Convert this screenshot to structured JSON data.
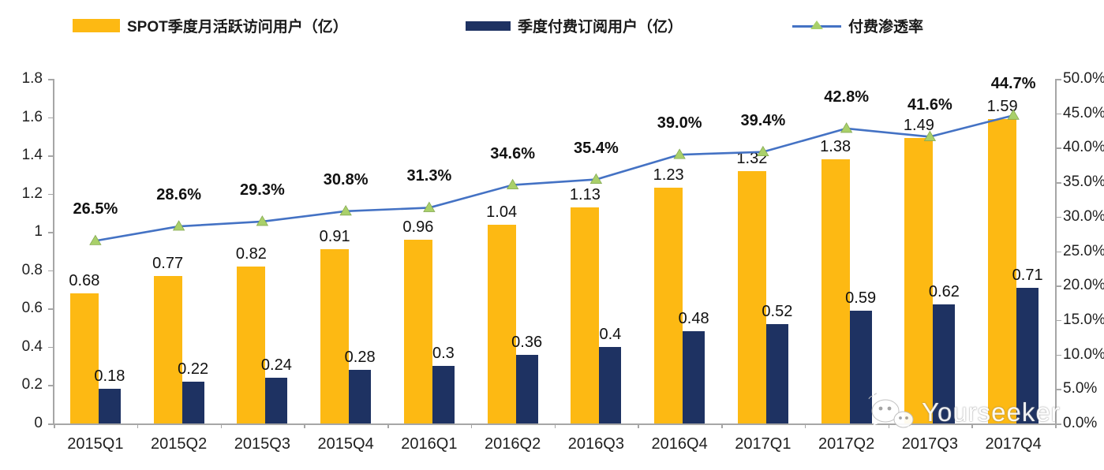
{
  "legend": {
    "items": [
      {
        "label": "SPOT季度月活跃访问用户（亿）",
        "swatch": "bar",
        "color": "#FDB913"
      },
      {
        "label": "季度付费订阅用户（亿）",
        "swatch": "bar",
        "color": "#1E3262"
      },
      {
        "label": "付费渗透率",
        "swatch": "line-marker",
        "line_color": "#4472C4",
        "marker_color": "#A9D06A"
      }
    ]
  },
  "chart_data": {
    "type": "bar",
    "subtype": "combo bar + line, dual axis",
    "categories": [
      "2015Q1",
      "2015Q2",
      "2015Q3",
      "2015Q4",
      "2016Q1",
      "2016Q2",
      "2016Q3",
      "2016Q4",
      "2017Q1",
      "2017Q2",
      "2017Q3",
      "2017Q4"
    ],
    "series": [
      {
        "name": "SPOT季度月活跃访问用户（亿）",
        "type": "bar",
        "axis": "left",
        "color": "#FDB913",
        "values": [
          0.68,
          0.77,
          0.82,
          0.91,
          0.96,
          1.04,
          1.13,
          1.23,
          1.32,
          1.38,
          1.49,
          1.59
        ],
        "labels": [
          "0.68",
          "0.77",
          "0.82",
          "0.91",
          "0.96",
          "1.04",
          "1.13",
          "1.23",
          "1.32",
          "1.38",
          "1.49",
          "1.59"
        ]
      },
      {
        "name": "季度付费订阅用户（亿）",
        "type": "bar",
        "axis": "left",
        "color": "#1E3262",
        "values": [
          0.18,
          0.22,
          0.24,
          0.28,
          0.3,
          0.36,
          0.4,
          0.48,
          0.52,
          0.59,
          0.62,
          0.71
        ],
        "labels": [
          "0.18",
          "0.22",
          "0.24",
          "0.28",
          "0.3",
          "0.36",
          "0.4",
          "0.48",
          "0.52",
          "0.59",
          "0.62",
          "0.71"
        ]
      },
      {
        "name": "付费渗透率",
        "type": "line",
        "axis": "right",
        "color": "#4472C4",
        "marker": "triangle",
        "marker_color": "#A9D06A",
        "values": [
          26.5,
          28.6,
          29.3,
          30.8,
          31.3,
          34.6,
          35.4,
          39.0,
          39.4,
          42.8,
          41.6,
          44.7
        ],
        "labels": [
          "26.5%",
          "28.6%",
          "29.3%",
          "30.8%",
          "31.3%",
          "34.6%",
          "35.4%",
          "39.0%",
          "39.4%",
          "42.8%",
          "41.6%",
          "44.7%"
        ]
      }
    ],
    "left_axis": {
      "min": 0,
      "max": 1.8,
      "step": 0.2,
      "tick_labels": [
        "0",
        "0.2",
        "0.4",
        "0.6",
        "0.8",
        "1",
        "1.2",
        "1.4",
        "1.6",
        "1.8"
      ]
    },
    "right_axis": {
      "min": 0,
      "max": 50,
      "step": 5,
      "tick_labels": [
        "0.0%",
        "5.0%",
        "10.0%",
        "15.0%",
        "20.0%",
        "25.0%",
        "30.0%",
        "35.0%",
        "40.0%",
        "45.0%",
        "50.0%"
      ]
    },
    "grid": "off",
    "legend_position": "top",
    "title": ""
  },
  "watermark": {
    "text": "Yourseeker",
    "icon": "wechat-icon"
  }
}
